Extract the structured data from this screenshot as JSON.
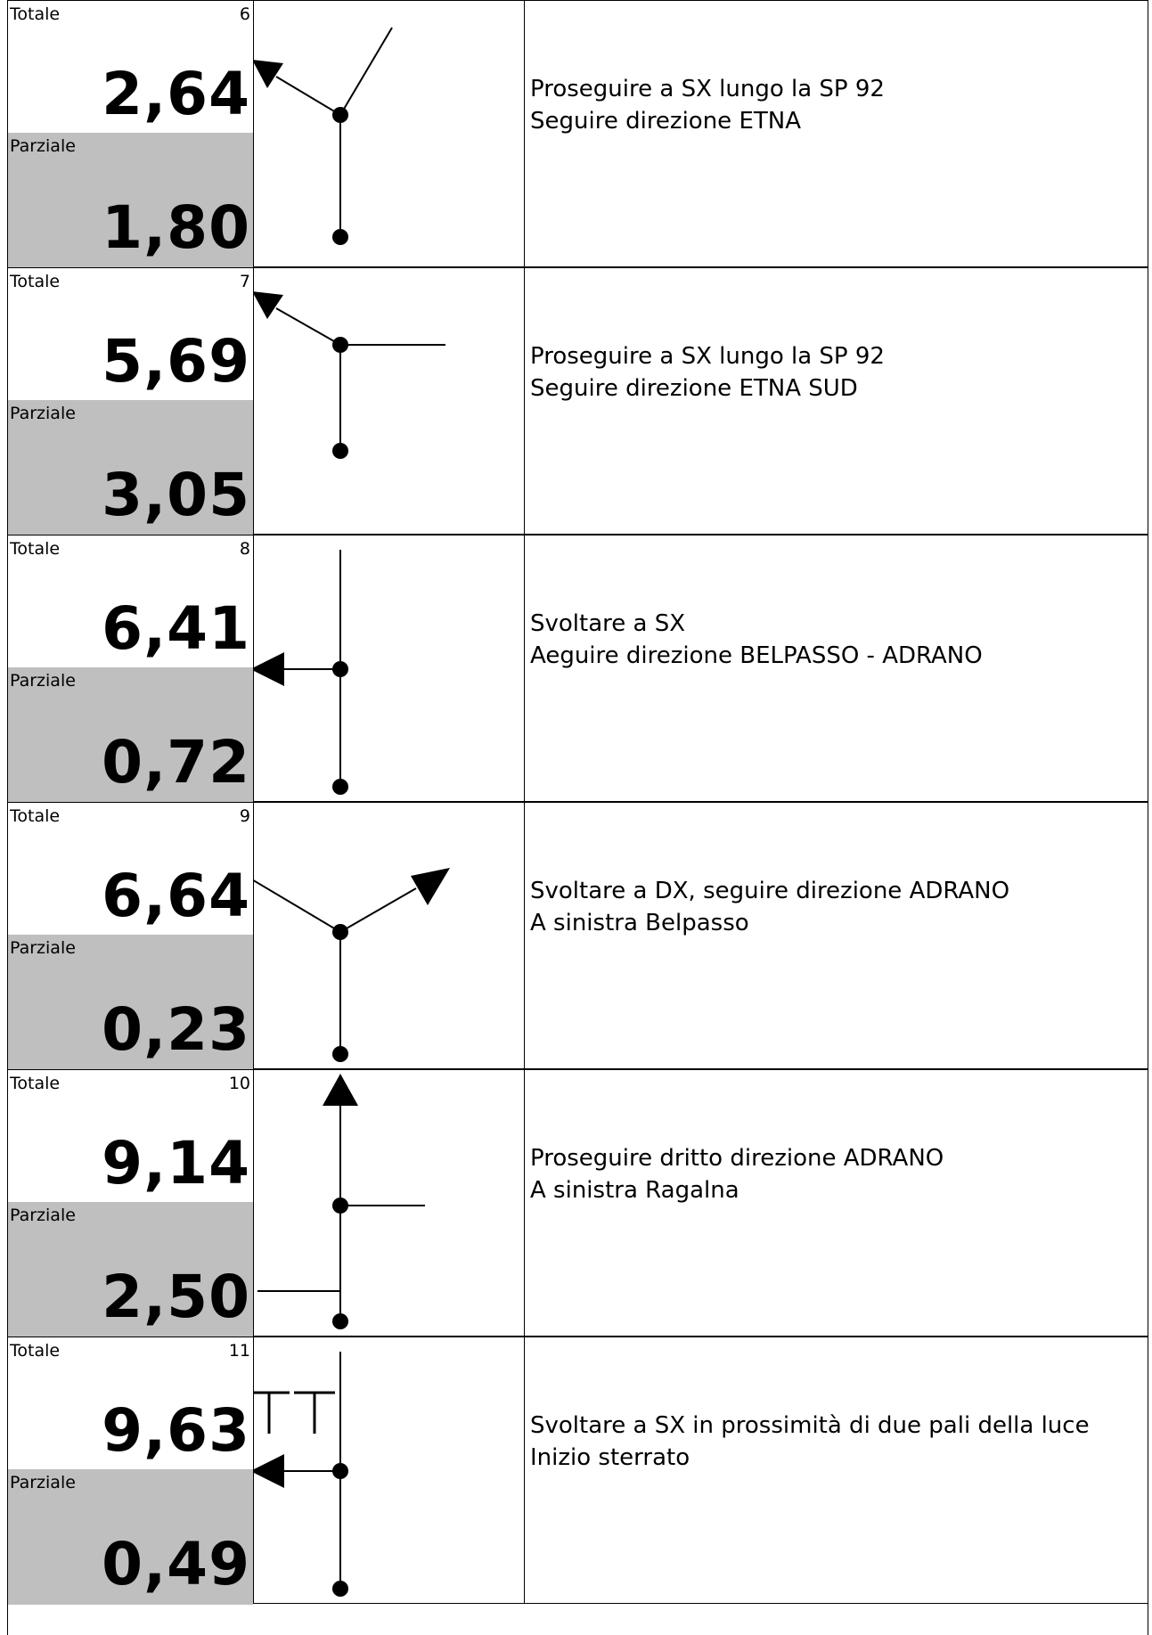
{
  "labels": {
    "totale": "Totale",
    "parziale": "Parziale"
  },
  "steps": [
    {
      "num": "6",
      "totale": "2,64",
      "parziale": "1,80",
      "line1": "Proseguire a SX lungo la SP 92",
      "line2": "Seguire direzione ETNA"
    },
    {
      "num": "7",
      "totale": "5,69",
      "parziale": "3,05",
      "line1": "Proseguire a SX lungo la SP 92",
      "line2": "Seguire direzione ETNA SUD"
    },
    {
      "num": "8",
      "totale": "6,41",
      "parziale": "0,72",
      "line1": "Svoltare a SX",
      "line2": "Aeguire direzione BELPASSO - ADRANO"
    },
    {
      "num": "9",
      "totale": "6,64",
      "parziale": "0,23",
      "line1": "Svoltare a DX, seguire direzione ADRANO",
      "line2": "A sinistra Belpasso"
    },
    {
      "num": "10",
      "totale": "9,14",
      "parziale": "2,50",
      "line1": "Proseguire dritto direzione ADRANO",
      "line2": "A sinistra Ragalna"
    },
    {
      "num": "11",
      "totale": "9,63",
      "parziale": "0,49",
      "line1": "Svoltare a SX in prossimità di due pali della luce",
      "line2": "Inizio sterrato"
    }
  ],
  "diagram_icons": [
    "fork-left-arrow-icon",
    "fork-left-arrow-icon",
    "turn-left-arrow-icon",
    "fork-right-arrow-icon",
    "straight-arrow-icon",
    "turn-left-arrow-icon"
  ],
  "colors": {
    "parziale_bg": "#bfbfbf",
    "ink": "#000000",
    "paper": "#ffffff"
  }
}
